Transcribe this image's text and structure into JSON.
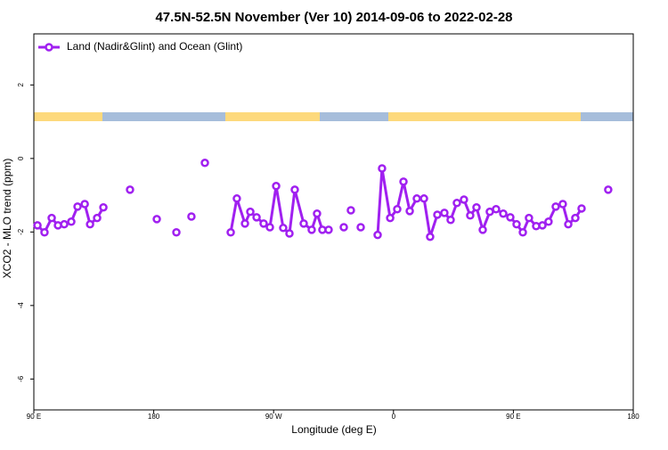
{
  "chart_data": {
    "type": "line",
    "title": "47.5N-52.5N November (Ver 10)   2014-09-06 to 2022-02-28",
    "x_label": "Longitude (deg E)",
    "y_label": "XCO2 - MLO trend (ppm)",
    "xlim": [
      90,
      540
    ],
    "ylim": [
      -6.84,
      3.39
    ],
    "xticks": [
      {
        "value": 90,
        "label": "90 E"
      },
      180,
      {
        "value": 270,
        "label": "90 W"
      },
      {
        "value": 360,
        "label": "0"
      },
      {
        "value": 450,
        "label": "90 E"
      },
      {
        "value": 540,
        "label": "180"
      }
    ],
    "yticks": [
      -6,
      -4,
      -2,
      0,
      2
    ],
    "legend": "top-left",
    "series": [
      {
        "name": "Land (Nadir&Glint) and Ocean (Glint)",
        "color": "#a020f0",
        "x": [
          92.7,
          98.0,
          103.4,
          108.1,
          112.8,
          118.1,
          122.8,
          128.2,
          132.2,
          137.5,
          142.2,
          null,
          162.2,
          null,
          182.3,
          null,
          197.0,
          null,
          208.3,
          null,
          218.4,
          null,
          237.8,
          242.4,
          248.5,
          252.5,
          257.2,
          262.5,
          267.2,
          271.9,
          277.2,
          281.9,
          285.9,
          292.6,
          298.6,
          302.6,
          306.6,
          311.3,
          null,
          322.7,
          null,
          328.0,
          null,
          335.4,
          null,
          348.1,
          351.4,
          357.5,
          362.8,
          367.5,
          372.2,
          377.5,
          382.9,
          387.5,
          392.9,
          398.2,
          402.9,
          407.6,
          412.9,
          417.6,
          422.3,
          427.0,
          432.3,
          437.0,
          442.4,
          447.7,
          452.4,
          457.1,
          461.7,
          467.1,
          471.8,
          476.4,
          481.8,
          487.1,
          491.2,
          496.5,
          501.2,
          null,
          521.2
        ],
        "values": [
          -1.82,
          -2.01,
          -1.62,
          -1.82,
          -1.79,
          -1.72,
          -1.31,
          -1.24,
          -1.79,
          -1.62,
          -1.33,
          null,
          -0.85,
          null,
          -1.65,
          null,
          -2.01,
          null,
          -1.58,
          null,
          -0.12,
          null,
          -2.01,
          -1.09,
          -1.77,
          -1.45,
          -1.6,
          -1.77,
          -1.87,
          -0.75,
          -1.89,
          -2.04,
          -0.85,
          -1.77,
          -1.94,
          -1.5,
          -1.94,
          -1.94,
          null,
          -1.87,
          null,
          -1.41,
          null,
          -1.87,
          null,
          -2.08,
          -0.27,
          -1.62,
          -1.38,
          -0.63,
          -1.43,
          -1.09,
          -1.09,
          -2.13,
          -1.53,
          -1.48,
          -1.67,
          -1.21,
          -1.12,
          -1.55,
          -1.33,
          -1.94,
          -1.45,
          -1.38,
          -1.5,
          -1.6,
          -1.79,
          -2.01,
          -1.62,
          -1.84,
          -1.82,
          -1.72,
          -1.31,
          -1.24,
          -1.79,
          -1.62,
          -1.36,
          null,
          -0.85
        ]
      }
    ]
  }
}
